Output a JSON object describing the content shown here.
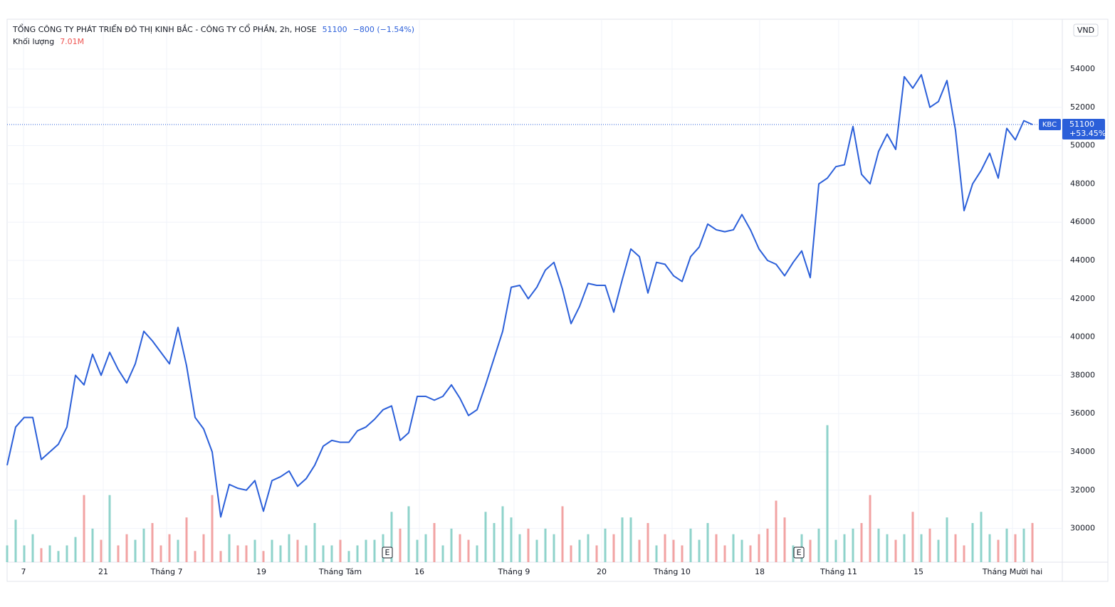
{
  "chart_data": {
    "type": "line",
    "title": "TỔNG CÔNG TY PHÁT TRIỂN ĐÔ THỊ KINH BẮC - CÔNG TY CỔ PHẦN, 2h, HOSE",
    "last_price": 51100,
    "change_label": "−800 (−1.54%)",
    "volume_title": "Khối lượng",
    "last_volume_label": "7.01M",
    "currency": "VND",
    "symbol": "KBC",
    "percent_label": "+53.45%",
    "color": "#2b5fd9",
    "up_color": "#8fd3cb",
    "down_color": "#f2a3a3",
    "grid": true,
    "ylim": [
      28238,
      56602
    ],
    "yticks": [
      30000,
      32000,
      34000,
      36000,
      38000,
      40000,
      42000,
      44000,
      46000,
      48000,
      50000,
      52000,
      54000
    ],
    "xlim": [
      0,
      123.5
    ],
    "xticks": [
      {
        "value": 1.92,
        "label": "7"
      },
      {
        "value": 11.25,
        "label": "21"
      },
      {
        "value": 18.67,
        "label": "Tháng 7"
      },
      {
        "value": 29.75,
        "label": "19"
      },
      {
        "value": 39,
        "label": "Tháng Tám"
      },
      {
        "value": 48.25,
        "label": "16"
      },
      {
        "value": 59.33,
        "label": "Tháng 9"
      },
      {
        "value": 69.58,
        "label": "20"
      },
      {
        "value": 77.83,
        "label": "Tháng 10"
      },
      {
        "value": 88.08,
        "label": "18"
      },
      {
        "value": 97.33,
        "label": "Tháng 11"
      },
      {
        "value": 106.67,
        "label": "15"
      },
      {
        "value": 117.67,
        "label": "Tháng Mười hai"
      }
    ],
    "events": [
      {
        "value": 44.5,
        "label": "E"
      },
      {
        "value": 92.67,
        "label": "E"
      }
    ],
    "values": [
      33300,
      35300,
      35800,
      35800,
      33600,
      34000,
      34400,
      35300,
      38000,
      37500,
      39100,
      38000,
      39200,
      38300,
      37600,
      38600,
      40300,
      39800,
      39200,
      38600,
      40500,
      38500,
      35800,
      35200,
      34000,
      30600,
      32300,
      32100,
      32000,
      32500,
      30900,
      32500,
      32700,
      33000,
      32200,
      32600,
      33300,
      34300,
      34600,
      34500,
      34500,
      35100,
      35300,
      35700,
      36200,
      36400,
      34600,
      35000,
      36900,
      36900,
      36700,
      36900,
      37500,
      36800,
      35900,
      36200,
      37500,
      38900,
      40300,
      42600,
      42700,
      42000,
      42600,
      43500,
      43900,
      42500,
      40700,
      41600,
      42800,
      42700,
      42700,
      41300,
      43000,
      44600,
      44200,
      42300,
      43900,
      43800,
      43200,
      42900,
      44200,
      44700,
      45900,
      45600,
      45500,
      45600,
      46400,
      45600,
      44600,
      44000,
      43800,
      43200,
      43900,
      44500,
      43100,
      48000,
      48300,
      48900,
      49000,
      51000,
      48500,
      48000,
      49700,
      50600,
      49800,
      53600,
      53000,
      53700,
      52000,
      52300,
      53400,
      50800,
      46600,
      48000,
      48700,
      49600,
      48300,
      50900,
      50300,
      51300,
      51100
    ],
    "volume_lim": [
      0,
      35
    ],
    "volume": [
      3,
      7.6,
      3,
      5,
      2.5,
      3,
      2,
      3,
      4.5,
      12,
      6,
      4,
      12,
      3,
      5,
      4,
      6,
      7,
      3,
      5,
      4,
      8,
      2,
      5,
      12,
      2,
      5,
      3,
      3,
      4,
      2,
      4,
      3,
      5,
      4,
      3,
      7,
      3,
      3,
      4,
      2,
      3,
      4,
      4,
      5,
      9,
      6,
      10,
      4,
      5,
      7,
      3,
      6,
      5,
      4,
      3,
      9,
      7,
      10,
      8,
      5,
      6,
      4,
      6,
      5,
      10,
      3,
      4,
      5,
      3,
      6,
      5,
      8,
      8,
      4,
      7,
      3,
      5,
      4,
      3,
      6,
      4,
      7,
      5,
      3,
      5,
      4,
      3,
      5,
      6,
      11,
      8,
      3,
      5,
      4,
      6,
      24.5,
      4,
      5,
      6,
      7,
      12,
      6,
      5,
      4,
      5,
      9,
      5,
      6,
      4,
      8,
      5,
      3,
      7,
      9,
      5,
      4,
      6,
      5,
      6,
      7.01
    ]
  }
}
